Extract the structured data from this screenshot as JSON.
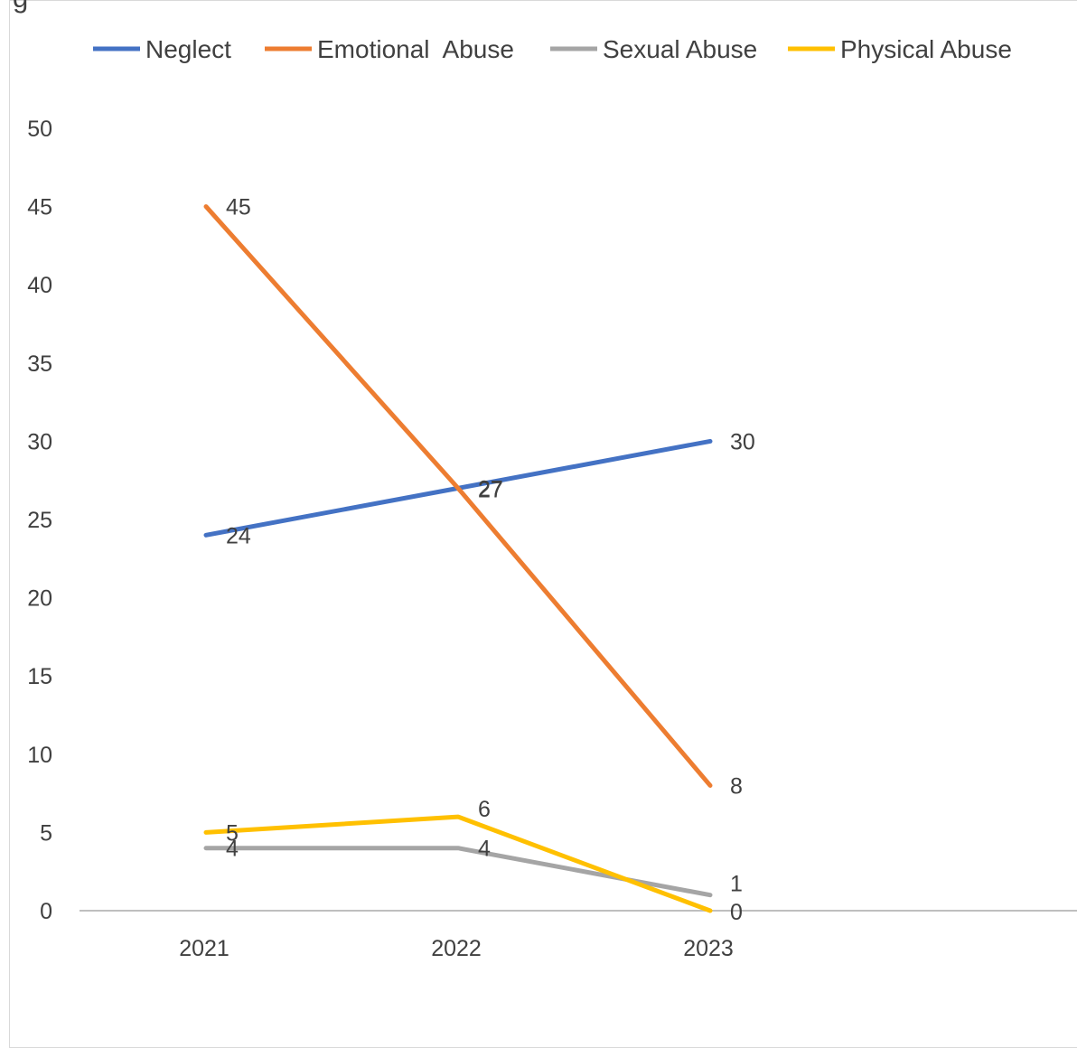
{
  "chart_data": {
    "type": "line",
    "title": "",
    "xlabel": "",
    "ylabel": "",
    "categories": [
      "2021",
      "2022",
      "2023"
    ],
    "ylim": [
      0,
      50
    ],
    "yticks": [
      0,
      5,
      10,
      15,
      20,
      25,
      30,
      35,
      40,
      45,
      50
    ],
    "grid": false,
    "legend_position": "top",
    "data_labels": true,
    "series": [
      {
        "name": "Neglect",
        "values": [
          24,
          27,
          30
        ],
        "color": "#4472C4"
      },
      {
        "name": "Emotional  Abuse",
        "values": [
          45,
          27,
          8
        ],
        "color": "#ED7D31"
      },
      {
        "name": "Sexual Abuse",
        "values": [
          4,
          4,
          1
        ],
        "color": "#A5A5A5"
      },
      {
        "name": "Physical Abuse",
        "values": [
          5,
          6,
          0
        ],
        "color": "#FFC000"
      }
    ]
  }
}
